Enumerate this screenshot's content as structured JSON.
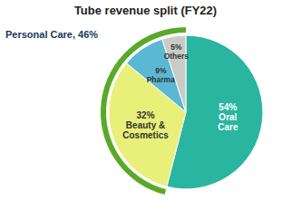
{
  "chart_data": {
    "type": "pie",
    "title": "Tube revenue split (FY22)",
    "categories": [
      "Oral\nCare",
      "Beauty &\nCosmetics",
      "Pharma",
      "Others"
    ],
    "values": [
      54,
      32,
      9,
      5
    ],
    "value_labels": [
      "54%",
      "32%",
      "9%",
      "5%"
    ],
    "colors": [
      "#2ab5a0",
      "#e8f07a",
      "#5bb8d4",
      "#c8cbc8"
    ],
    "data_labels": true,
    "annotations": [
      {
        "text": "Personal Care, 46%",
        "value": 46,
        "color": "#5aaa28"
      }
    ]
  }
}
